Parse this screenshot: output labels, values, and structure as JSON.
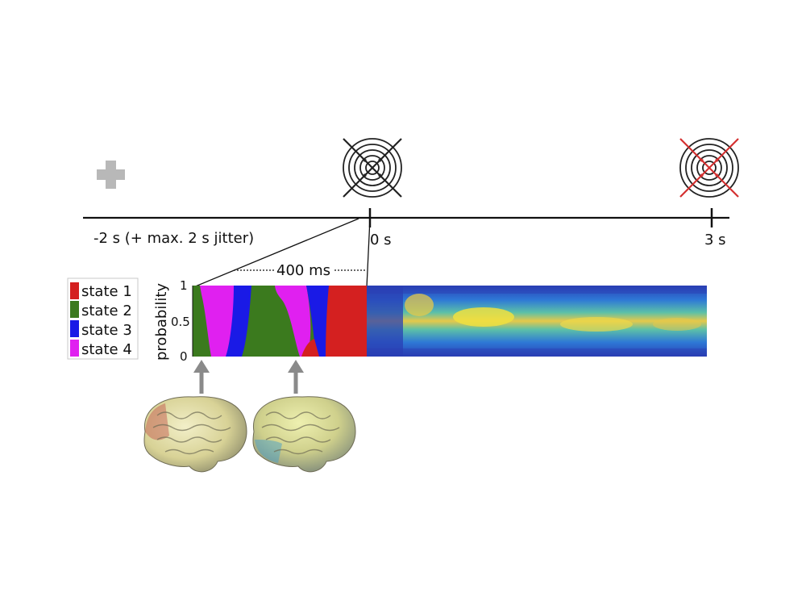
{
  "timeline": {
    "start_label": "-2 s (+ max. 2 s jitter)",
    "zero_label": "0 s",
    "end_label": "3 s",
    "window_label": "400 ms"
  },
  "legend": [
    {
      "label": "state 1",
      "color": "#d42020"
    },
    {
      "label": "state 2",
      "color": "#3b7a1e"
    },
    {
      "label": "state 3",
      "color": "#1a1ae6"
    },
    {
      "label": "state 4",
      "color": "#e020f0"
    }
  ],
  "axis": {
    "ylabel": "probability",
    "ticks": [
      "1",
      "0.5",
      "0"
    ]
  },
  "colors": {
    "fixation": "#b8b8b8",
    "target_x": "#222222",
    "end_x": "#d43030",
    "arrow": "#8a8a8a",
    "axis_line": "#111111"
  },
  "icons": {
    "fixation": "plus-icon",
    "target": "crossed-target-icon",
    "end_target": "crossed-target-red-icon",
    "brain": "brain-icon"
  }
}
